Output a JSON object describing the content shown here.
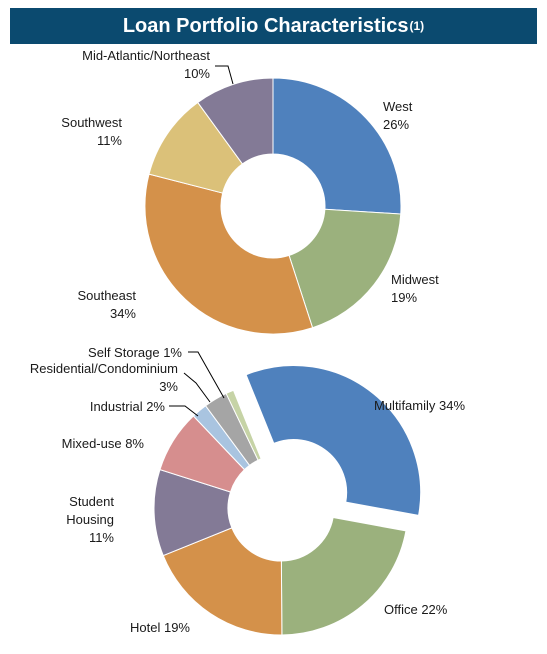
{
  "title": {
    "text": "Loan Portfolio Characteristics",
    "footnote": "(1)",
    "background": "#0b4a6f"
  },
  "chart_data": [
    {
      "type": "pie",
      "subtype": "donut",
      "title": "",
      "slices": [
        {
          "label": "West",
          "value": 26,
          "value_label": "26%",
          "color": "#4f81bd"
        },
        {
          "label": "Midwest",
          "value": 19,
          "value_label": "19%",
          "color": "#9bb17d"
        },
        {
          "label": "Southeast",
          "value": 34,
          "value_label": "34%",
          "color": "#d4914a"
        },
        {
          "label": "Southwest",
          "value": 11,
          "value_label": "11%",
          "color": "#dbc179"
        },
        {
          "label": "Mid-Atlantic/Northeast",
          "value": 10,
          "value_label": "10%",
          "color": "#837a96"
        }
      ]
    },
    {
      "type": "pie",
      "subtype": "donut",
      "title": "",
      "slices": [
        {
          "label": "Multifamily",
          "value": 34,
          "value_label": "34%",
          "color": "#4f81bd"
        },
        {
          "label": "Office",
          "value": 22,
          "value_label": "22%",
          "color": "#9bb17d"
        },
        {
          "label": "Hotel",
          "value": 19,
          "value_label": "19%",
          "color": "#d4914a"
        },
        {
          "label": "Student Housing",
          "value": 11,
          "value_label": "11%",
          "color": "#837a96"
        },
        {
          "label": "Mixed-use",
          "value": 8,
          "value_label": "8%",
          "color": "#d68e8e"
        },
        {
          "label": "Industrial",
          "value": 2,
          "value_label": "2%",
          "color": "#a9c4e0"
        },
        {
          "label": "Residential/Condominium",
          "value": 3,
          "value_label": "3%",
          "color": "#a5a5a5"
        },
        {
          "label": "Self Storage",
          "value": 1,
          "value_label": "1%",
          "color": "#c6d3a6"
        }
      ]
    }
  ]
}
